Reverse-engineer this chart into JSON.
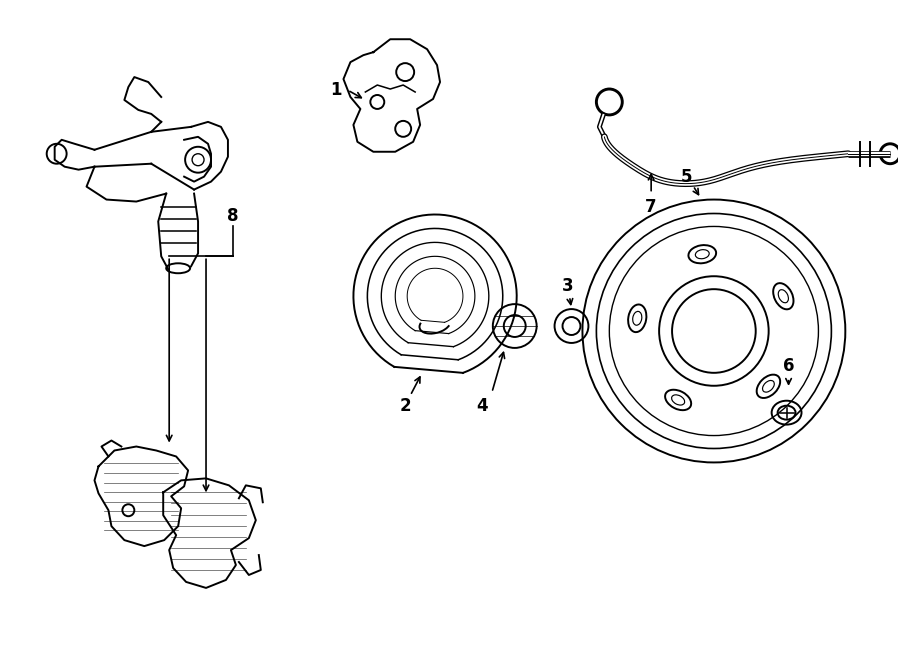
{
  "background_color": "#ffffff",
  "line_color": "#000000",
  "lw": 1.4,
  "clw": 1.2,
  "fig_width": 9.0,
  "fig_height": 6.61,
  "dpi": 100,
  "label_fontsize": 12,
  "label_fontweight": "bold"
}
